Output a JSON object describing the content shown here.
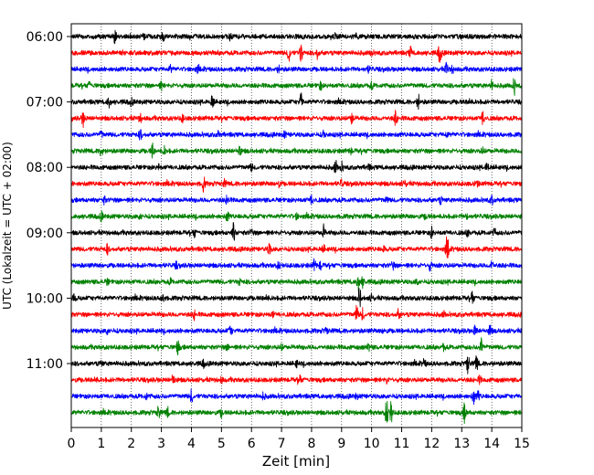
{
  "chart_data": {
    "type": "line",
    "title": "",
    "xlabel": "Zeit  [min]",
    "ylabel": "UTC (Lokalzeit = UTC + 02:00)",
    "xlim": [
      0,
      15
    ],
    "x_ticks": [
      0,
      1,
      2,
      3,
      4,
      5,
      6,
      7,
      8,
      9,
      10,
      11,
      12,
      13,
      14,
      15
    ],
    "y_ticks": [
      "06:00",
      "07:00",
      "08:00",
      "09:00",
      "10:00",
      "11:00"
    ],
    "grid": "vertical dotted lines at each minute",
    "legend": "none",
    "trace_colors": [
      "#000000",
      "#ff0000",
      "#0000ff",
      "#008000"
    ],
    "series": [
      {
        "start": "05:45",
        "color": "#000000",
        "events": [
          [
            1.45,
            1.0
          ],
          [
            2.4,
            0.5
          ],
          [
            3.05,
            1.0
          ],
          [
            5.3,
            0.5
          ],
          [
            8.8,
            0.4
          ],
          [
            9.5,
            0.4
          ]
        ]
      },
      {
        "start": "06:00",
        "color": "#ff0000",
        "events": [
          [
            7.25,
            1.5
          ],
          [
            7.65,
            1.8
          ],
          [
            8.2,
            0.9
          ],
          [
            10.0,
            0.5
          ],
          [
            11.3,
            0.9
          ],
          [
            12.25,
            1.0
          ],
          [
            12.3,
            0.7
          ]
        ]
      },
      {
        "start": "06:15",
        "color": "#0000ff",
        "events": [
          [
            3.3,
            0.5
          ],
          [
            4.2,
            0.4
          ],
          [
            6.9,
            0.5
          ],
          [
            9.9,
            0.5
          ],
          [
            12.5,
            1.1
          ],
          [
            12.7,
            0.6
          ]
        ]
      },
      {
        "start": "06:30",
        "color": "#008000",
        "events": [
          [
            0.6,
            0.5
          ],
          [
            3.0,
            0.6
          ],
          [
            8.3,
            0.6
          ],
          [
            10.0,
            0.5
          ],
          [
            14.0,
            0.7
          ],
          [
            14.75,
            1.4
          ]
        ]
      },
      {
        "start": "06:45",
        "color": "#000000",
        "events": [
          [
            1.25,
            0.9
          ],
          [
            2.0,
            0.5
          ],
          [
            4.7,
            1.2
          ],
          [
            7.65,
            1.4
          ],
          [
            11.55,
            1.2
          ],
          [
            13.25,
            0.5
          ]
        ]
      },
      {
        "start": "07:00",
        "color": "#ff0000",
        "events": [
          [
            0.4,
            1.3
          ],
          [
            2.3,
            0.6
          ],
          [
            3.7,
            0.5
          ],
          [
            9.35,
            1.1
          ],
          [
            10.8,
            1.2
          ],
          [
            13.7,
            1.2
          ]
        ]
      },
      {
        "start": "07:15",
        "color": "#0000ff",
        "events": [
          [
            1.0,
            0.5
          ],
          [
            2.3,
            0.8
          ],
          [
            4.9,
            0.5
          ],
          [
            7.1,
            0.4
          ],
          [
            8.4,
            0.5
          ],
          [
            12.5,
            0.4
          ]
        ]
      },
      {
        "start": "07:30",
        "color": "#008000",
        "events": [
          [
            1.0,
            1.1
          ],
          [
            2.7,
            1.2
          ],
          [
            3.1,
            0.6
          ],
          [
            5.6,
            0.9
          ],
          [
            9.3,
            0.4
          ],
          [
            13.7,
            0.5
          ]
        ]
      },
      {
        "start": "07:45",
        "color": "#000000",
        "events": [
          [
            2.9,
            0.4
          ],
          [
            6.0,
            0.5
          ],
          [
            8.8,
            1.1
          ],
          [
            9.0,
            0.8
          ],
          [
            9.9,
            0.4
          ],
          [
            13.85,
            0.9
          ]
        ]
      },
      {
        "start": "08:00",
        "color": "#ff0000",
        "events": [
          [
            4.4,
            1.2
          ],
          [
            5.1,
            0.5
          ],
          [
            6.9,
            0.5
          ],
          [
            9.0,
            0.5
          ],
          [
            11.1,
            0.5
          ],
          [
            13.5,
            0.6
          ]
        ]
      },
      {
        "start": "08:15",
        "color": "#0000ff",
        "events": [
          [
            1.1,
            0.5
          ],
          [
            5.2,
            1.1
          ],
          [
            8.0,
            0.8
          ],
          [
            10.5,
            0.4
          ],
          [
            12.3,
            0.5
          ],
          [
            14.0,
            0.7
          ]
        ]
      },
      {
        "start": "08:30",
        "color": "#008000",
        "events": [
          [
            1.0,
            0.6
          ],
          [
            2.3,
            0.4
          ],
          [
            5.2,
            0.9
          ],
          [
            7.5,
            0.4
          ],
          [
            11.8,
            0.4
          ],
          [
            13.2,
            0.4
          ]
        ]
      },
      {
        "start": "08:45",
        "color": "#000000",
        "events": [
          [
            4.1,
            0.6
          ],
          [
            5.4,
            1.5
          ],
          [
            6.0,
            0.5
          ],
          [
            8.4,
            1.1
          ],
          [
            12.0,
            0.8
          ],
          [
            13.2,
            0.5
          ],
          [
            14.1,
            0.6
          ]
        ]
      },
      {
        "start": "09:00",
        "color": "#ff0000",
        "events": [
          [
            1.2,
            0.7
          ],
          [
            6.6,
            1.1
          ],
          [
            8.4,
            0.5
          ],
          [
            10.4,
            0.4
          ],
          [
            12.5,
            1.3
          ],
          [
            12.55,
            0.8
          ]
        ]
      },
      {
        "start": "09:15",
        "color": "#0000ff",
        "events": [
          [
            3.5,
            0.4
          ],
          [
            6.9,
            0.5
          ],
          [
            8.1,
            0.9
          ],
          [
            8.3,
            0.7
          ],
          [
            10.7,
            0.7
          ],
          [
            11.95,
            0.7
          ],
          [
            14.0,
            0.9
          ]
        ]
      },
      {
        "start": "09:30",
        "color": "#008000",
        "events": [
          [
            1.2,
            0.4
          ],
          [
            3.3,
            0.4
          ],
          [
            5.6,
            0.5
          ],
          [
            9.55,
            1.3
          ],
          [
            9.7,
            0.9
          ],
          [
            11.5,
            0.4
          ]
        ]
      },
      {
        "start": "09:45",
        "color": "#000000",
        "events": [
          [
            0.1,
            0.6
          ],
          [
            3.05,
            0.8
          ],
          [
            6.5,
            0.5
          ],
          [
            9.6,
            1.7
          ],
          [
            10.0,
            0.5
          ],
          [
            13.35,
            1.0
          ]
        ]
      },
      {
        "start": "10:00",
        "color": "#ff0000",
        "events": [
          [
            4.1,
            0.7
          ],
          [
            6.7,
            0.4
          ],
          [
            9.5,
            1.4
          ],
          [
            9.7,
            0.9
          ],
          [
            10.9,
            0.8
          ],
          [
            12.4,
            0.4
          ]
        ]
      },
      {
        "start": "10:15",
        "color": "#0000ff",
        "events": [
          [
            1.2,
            0.4
          ],
          [
            5.3,
            0.9
          ],
          [
            8.5,
            0.5
          ],
          [
            10.4,
            0.4
          ],
          [
            13.45,
            0.9
          ],
          [
            13.95,
            1.0
          ]
        ]
      },
      {
        "start": "10:30",
        "color": "#008000",
        "events": [
          [
            3.55,
            1.2
          ],
          [
            5.2,
            0.4
          ],
          [
            7.0,
            0.4
          ],
          [
            9.9,
            0.6
          ],
          [
            12.4,
            0.5
          ],
          [
            13.65,
            1.4
          ]
        ]
      },
      {
        "start": "10:45",
        "color": "#000000",
        "events": [
          [
            1.0,
            0.4
          ],
          [
            4.4,
            0.5
          ],
          [
            7.5,
            0.5
          ],
          [
            11.75,
            0.7
          ],
          [
            13.2,
            1.7
          ],
          [
            13.5,
            1.3
          ]
        ]
      },
      {
        "start": "11:00",
        "color": "#ff0000",
        "events": [
          [
            0.8,
            0.4
          ],
          [
            3.4,
            1.0
          ],
          [
            5.0,
            0.4
          ],
          [
            7.6,
            0.8
          ],
          [
            10.5,
            0.4
          ],
          [
            13.6,
            0.6
          ]
        ]
      },
      {
        "start": "11:15",
        "color": "#0000ff",
        "events": [
          [
            2.5,
            0.4
          ],
          [
            4.0,
            1.0
          ],
          [
            6.4,
            0.5
          ],
          [
            9.5,
            0.4
          ],
          [
            13.4,
            1.2
          ],
          [
            13.55,
            0.8
          ]
        ]
      },
      {
        "start": "11:30",
        "color": "#008000",
        "events": [
          [
            2.9,
            1.0
          ],
          [
            3.2,
            0.8
          ],
          [
            5.0,
            0.6
          ],
          [
            10.5,
            2.3
          ],
          [
            10.65,
            1.8
          ],
          [
            13.1,
            1.7
          ]
        ]
      }
    ]
  }
}
